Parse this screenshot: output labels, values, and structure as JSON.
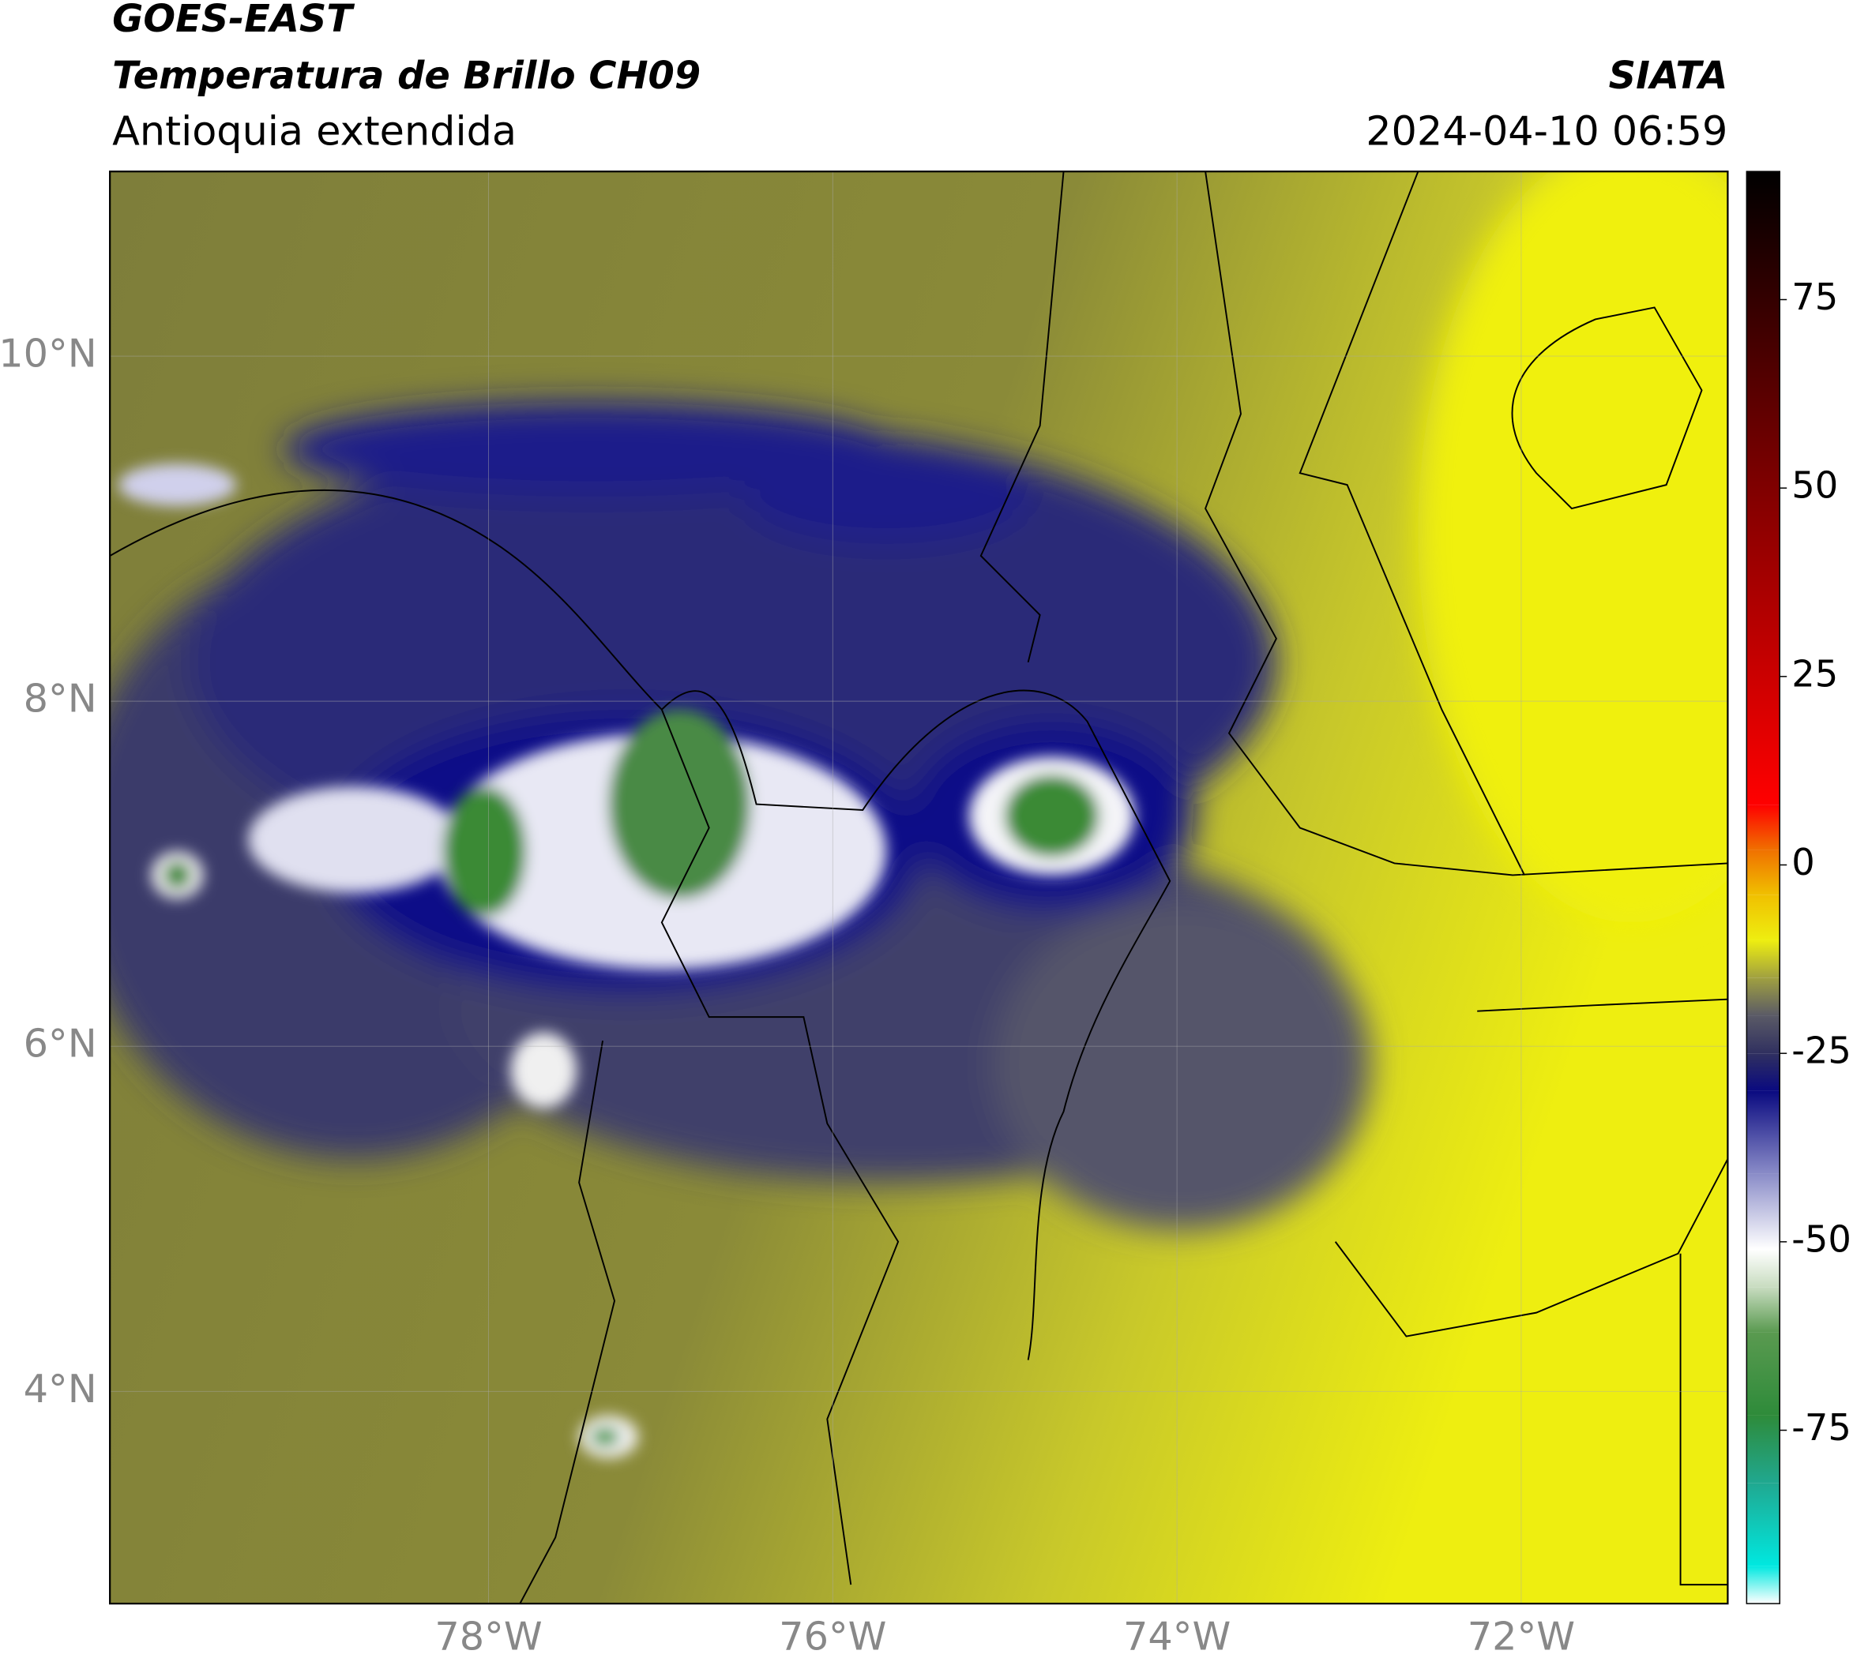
{
  "chart_data": {
    "type": "map",
    "title": "GOES-EAST",
    "subtitle": "Temperatura de Brillo CH09",
    "region": "Antioquia extendida",
    "source": "SIATA",
    "timestamp": "2024-04-10 06:59",
    "xlim": [
      -80.2,
      -70.8
    ],
    "ylim": [
      2.77,
      11.07
    ],
    "xticks": [
      {
        "value": -78,
        "label": "78°W"
      },
      {
        "value": -76,
        "label": "76°W"
      },
      {
        "value": -74,
        "label": "74°W"
      },
      {
        "value": -72,
        "label": "72°W"
      }
    ],
    "yticks": [
      {
        "value": 4,
        "label": "4°N"
      },
      {
        "value": 6,
        "label": "6°N"
      },
      {
        "value": 8,
        "label": "8°N"
      },
      {
        "value": 10,
        "label": "10°N"
      }
    ],
    "grid": true,
    "colorbar": {
      "lim": [
        -98,
        92
      ],
      "ticks": [
        75,
        50,
        25,
        0,
        -25,
        -50,
        -75
      ],
      "stops": [
        {
          "value": -98,
          "color": "#ffffff"
        },
        {
          "value": -93,
          "color": "#00e8e0"
        },
        {
          "value": -82,
          "color": "#20a890"
        },
        {
          "value": -73,
          "color": "#2e8b3a"
        },
        {
          "value": -62,
          "color": "#5a9a50"
        },
        {
          "value": -56,
          "color": "#c8dcc0"
        },
        {
          "value": -51,
          "color": "#ffffff"
        },
        {
          "value": -41,
          "color": "#8a8cc8"
        },
        {
          "value": -30,
          "color": "#0a0a80"
        },
        {
          "value": -25,
          "color": "#303060"
        },
        {
          "value": -20,
          "color": "#5a5a66"
        },
        {
          "value": -15,
          "color": "#a0a040"
        },
        {
          "value": -10,
          "color": "#eeee10"
        },
        {
          "value": -4,
          "color": "#f0c000"
        },
        {
          "value": 2,
          "color": "#f07000"
        },
        {
          "value": 8,
          "color": "#ff0000"
        },
        {
          "value": 92,
          "color": "#000000"
        }
      ]
    }
  }
}
